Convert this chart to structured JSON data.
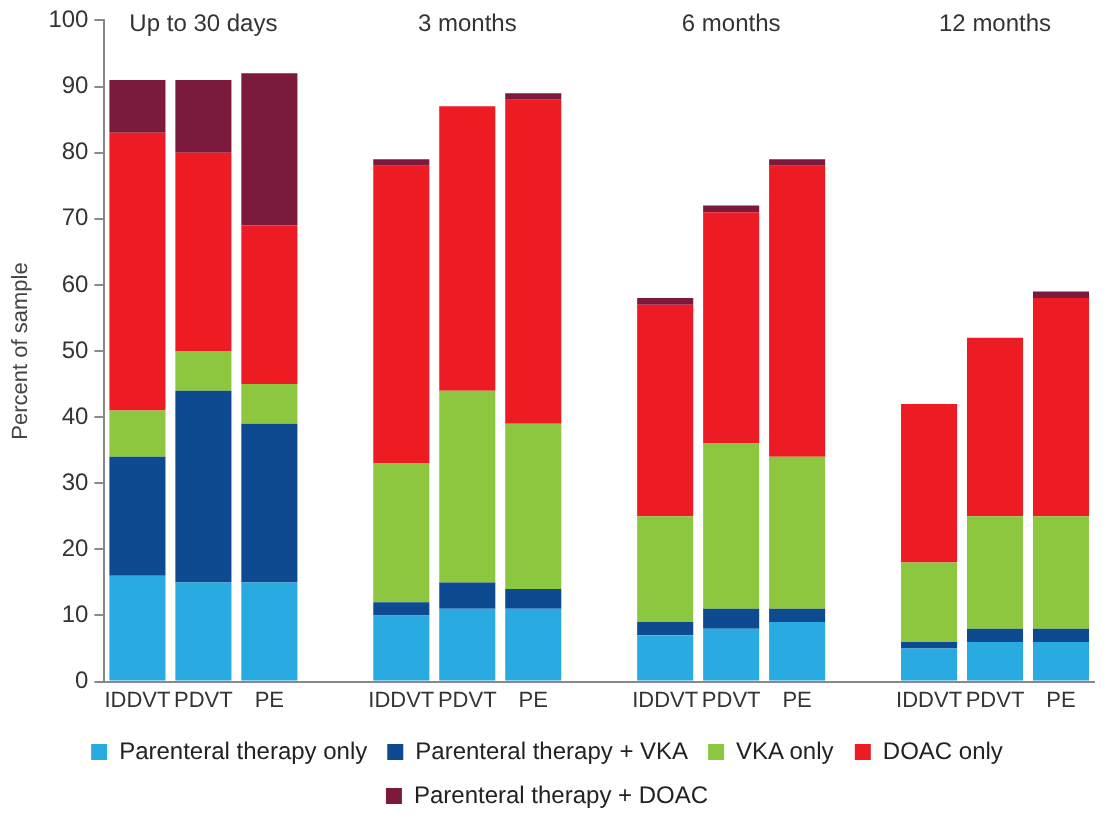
{
  "chart_data": {
    "type": "bar",
    "stacked": true,
    "ylabel": "Percent of sample",
    "categories": [
      "IDDVT",
      "PDVT",
      "PE",
      null,
      "IDDVT",
      "PDVT",
      "PE",
      null,
      "IDDVT",
      "PDVT",
      "PE",
      null,
      "IDDVT",
      "PDVT",
      "PE"
    ],
    "annotations": [
      "Up to 30 days",
      "3 months",
      "6 months",
      "12 months"
    ],
    "series": [
      {
        "name": "Parenteral therapy only",
        "color": "#29abe2",
        "values": [
          16,
          15,
          15,
          null,
          10,
          11,
          11,
          null,
          7,
          8,
          9,
          null,
          5,
          6,
          6
        ]
      },
      {
        "name": "Parenteral therapy + VKA",
        "color": "#0d4a8f",
        "values": [
          18,
          29,
          24,
          null,
          2,
          4,
          3,
          null,
          2,
          3,
          2,
          null,
          1,
          2,
          2
        ]
      },
      {
        "name": "VKA only",
        "color": "#8dc63f",
        "values": [
          7,
          6,
          6,
          null,
          21,
          29,
          25,
          null,
          16,
          25,
          23,
          null,
          12,
          17,
          17
        ]
      },
      {
        "name": "DOAC only",
        "color": "#ed1c24",
        "values": [
          42,
          30,
          24,
          null,
          45,
          43,
          49,
          null,
          32,
          35,
          44,
          null,
          24,
          27,
          33
        ]
      },
      {
        "name": "Parenteral therapy + DOAC",
        "color": "#7b1a3d",
        "values": [
          8,
          11,
          23,
          null,
          1,
          0,
          1,
          null,
          1,
          1,
          1,
          null,
          0,
          0,
          1
        ]
      }
    ],
    "ylim": [
      0,
      100
    ],
    "yticks": [
      0,
      10,
      20,
      30,
      40,
      50,
      60,
      70,
      80,
      90,
      100
    ],
    "grid": false,
    "legend": "bottom"
  }
}
